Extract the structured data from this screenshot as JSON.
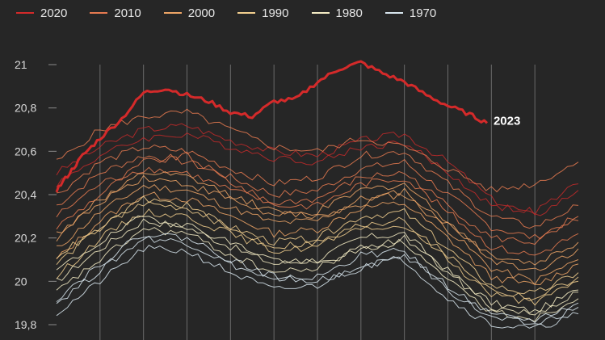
{
  "legend": [
    {
      "label": "2020",
      "color": "#d42a2a"
    },
    {
      "label": "2010",
      "color": "#e67a50"
    },
    {
      "label": "2000",
      "color": "#eda566"
    },
    {
      "label": "1990",
      "color": "#f2cf8e"
    },
    {
      "label": "1980",
      "color": "#f5ecc4"
    },
    {
      "label": "1970",
      "color": "#d8e6ee"
    }
  ],
  "chart_data": {
    "type": "line",
    "title": "",
    "xlabel": "",
    "ylabel": "",
    "ylim": [
      19.8,
      21.0
    ],
    "yticks": [
      "21",
      "20,8",
      "20,6",
      "20,4",
      "20,2",
      "20",
      "19,8"
    ],
    "ytick_values": [
      21.0,
      20.8,
      20.6,
      20.4,
      20.2,
      20.0,
      19.8
    ],
    "grid": "vertical",
    "legend_position": "top-left",
    "x": [
      0,
      1,
      2,
      3,
      4,
      5,
      6,
      7,
      8,
      9,
      10,
      11,
      12
    ],
    "highlight": {
      "label": "2023",
      "color": "#d42a2a",
      "x": [
        0,
        0.3,
        0.6,
        1.0,
        1.5,
        2.0,
        2.5,
        3.0,
        3.5,
        4.0,
        4.5,
        5.0,
        5.5,
        6.0,
        6.5,
        7.0,
        7.5,
        8.0,
        8.5,
        9.0,
        9.5,
        9.9
      ],
      "y": [
        20.42,
        20.5,
        20.58,
        20.66,
        20.75,
        20.87,
        20.89,
        20.86,
        20.83,
        20.78,
        20.76,
        20.83,
        20.84,
        20.92,
        20.98,
        21.01,
        20.96,
        20.92,
        20.86,
        20.81,
        20.77,
        20.73
      ]
    },
    "series": [
      {
        "decade": "2020",
        "color": "#c22a2a",
        "y": [
          20.5,
          20.62,
          20.7,
          20.72,
          20.65,
          20.6,
          20.58,
          20.65,
          20.68,
          20.55,
          20.38,
          20.3,
          20.42
        ]
      },
      {
        "decade": "2020",
        "color": "#c22a2a",
        "y": [
          20.45,
          20.58,
          20.66,
          20.68,
          20.62,
          20.57,
          20.55,
          20.62,
          20.64,
          20.5,
          20.35,
          20.32,
          20.45
        ]
      },
      {
        "decade": "2010",
        "color": "#e67a50",
        "y": [
          20.55,
          20.7,
          20.76,
          20.78,
          20.7,
          20.62,
          20.6,
          20.66,
          20.62,
          20.52,
          20.42,
          20.45,
          20.55
        ]
      },
      {
        "decade": "2010",
        "color": "#e67a50",
        "y": [
          20.4,
          20.55,
          20.62,
          20.6,
          20.52,
          20.45,
          20.48,
          20.58,
          20.6,
          20.45,
          20.3,
          20.25,
          20.35
        ]
      },
      {
        "decade": "2010",
        "color": "#e67a50",
        "y": [
          20.35,
          20.5,
          20.58,
          20.55,
          20.48,
          20.4,
          20.42,
          20.52,
          20.55,
          20.4,
          20.25,
          20.2,
          20.3
        ]
      },
      {
        "decade": "2010",
        "color": "#e67a50",
        "y": [
          20.3,
          20.45,
          20.52,
          20.5,
          20.42,
          20.36,
          20.38,
          20.48,
          20.5,
          20.35,
          20.2,
          20.18,
          20.28
        ]
      },
      {
        "decade": "2010",
        "color": "#e67a50",
        "y": [
          20.25,
          20.4,
          20.55,
          20.58,
          20.46,
          20.35,
          20.35,
          20.45,
          20.48,
          20.32,
          20.16,
          20.12,
          20.22
        ]
      },
      {
        "decade": "2000",
        "color": "#eda566",
        "y": [
          20.2,
          20.38,
          20.48,
          20.45,
          20.38,
          20.3,
          20.32,
          20.42,
          20.45,
          20.28,
          20.1,
          20.05,
          20.15
        ]
      },
      {
        "decade": "2000",
        "color": "#eda566",
        "y": [
          20.15,
          20.32,
          20.44,
          20.42,
          20.34,
          20.27,
          20.28,
          20.38,
          20.4,
          20.24,
          20.06,
          20.0,
          20.1
        ]
      },
      {
        "decade": "2000",
        "color": "#eda566",
        "y": [
          20.22,
          20.36,
          20.5,
          20.48,
          20.4,
          20.32,
          20.3,
          20.36,
          20.42,
          20.26,
          20.12,
          20.08,
          20.18
        ]
      },
      {
        "decade": "2000",
        "color": "#eda566",
        "y": [
          20.1,
          20.28,
          20.4,
          20.38,
          20.3,
          20.22,
          20.24,
          20.34,
          20.36,
          20.2,
          20.02,
          19.98,
          20.08
        ]
      },
      {
        "decade": "1990",
        "color": "#f2cf8e",
        "y": [
          20.08,
          20.25,
          20.36,
          20.34,
          20.25,
          20.18,
          20.2,
          20.3,
          20.32,
          20.15,
          19.98,
          19.94,
          20.04
        ]
      },
      {
        "decade": "1990",
        "color": "#f2cf8e",
        "y": [
          20.02,
          20.2,
          20.32,
          20.3,
          20.22,
          20.14,
          20.16,
          20.26,
          20.28,
          20.1,
          19.94,
          19.9,
          20.0
        ]
      },
      {
        "decade": "1990",
        "color": "#f2cf8e",
        "y": [
          20.12,
          20.24,
          20.38,
          20.35,
          20.24,
          20.16,
          20.18,
          20.24,
          20.26,
          20.12,
          19.96,
          19.92,
          20.02
        ]
      },
      {
        "decade": "1980",
        "color": "#f5ecc4",
        "y": [
          20.0,
          20.15,
          20.28,
          20.25,
          20.16,
          20.08,
          20.1,
          20.2,
          20.22,
          20.05,
          19.9,
          19.86,
          19.96
        ]
      },
      {
        "decade": "1980",
        "color": "#f5ecc4",
        "y": [
          19.95,
          20.1,
          20.24,
          20.22,
          20.12,
          20.04,
          20.06,
          20.16,
          20.18,
          20.0,
          19.86,
          19.83,
          19.92
        ]
      },
      {
        "decade": "1980",
        "color": "#f5ecc4",
        "y": [
          20.05,
          20.18,
          20.3,
          20.26,
          20.18,
          20.1,
          20.08,
          20.14,
          20.2,
          20.04,
          19.88,
          19.85,
          19.95
        ]
      },
      {
        "decade": "1970",
        "color": "#d8e6ee",
        "y": [
          19.9,
          20.05,
          20.2,
          20.18,
          20.08,
          20.0,
          20.02,
          20.12,
          20.14,
          19.96,
          19.83,
          19.8,
          19.88
        ]
      },
      {
        "decade": "1970",
        "color": "#d8e6ee",
        "y": [
          19.85,
          20.0,
          20.15,
          20.14,
          20.04,
          19.96,
          19.98,
          20.08,
          20.1,
          19.92,
          19.8,
          19.78,
          19.85
        ]
      },
      {
        "decade": "1970",
        "color": "#d8e6ee",
        "y": [
          19.92,
          20.08,
          20.22,
          20.2,
          20.1,
          20.02,
          20.0,
          20.06,
          20.12,
          19.98,
          19.84,
          19.82,
          19.9
        ]
      }
    ]
  }
}
